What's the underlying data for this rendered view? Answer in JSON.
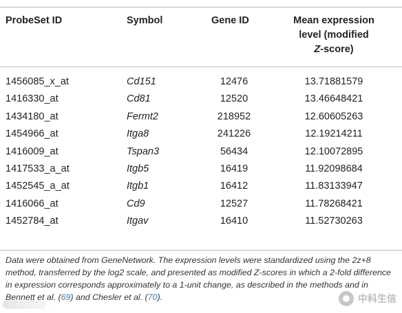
{
  "table": {
    "headers": {
      "probeset": "ProbeSet ID",
      "symbol": "Symbol",
      "gene_id": "Gene ID",
      "mean_line1": "Mean expression",
      "mean_line2": "level (modified",
      "mean_line3_z": "Z",
      "mean_line3_rest": "-score)"
    },
    "rows": [
      {
        "probeset": "1456085_x_at",
        "symbol": "Cd151",
        "gene_id": "12476",
        "mean": "13.71881579"
      },
      {
        "probeset": "1416330_at",
        "symbol": "Cd81",
        "gene_id": "12520",
        "mean": "13.46648421"
      },
      {
        "probeset": "1434180_at",
        "symbol": "Fermt2",
        "gene_id": "218952",
        "mean": "12.60605263"
      },
      {
        "probeset": "1454966_at",
        "symbol": "Itga8",
        "gene_id": "241226",
        "mean": "12.19214211"
      },
      {
        "probeset": "1416009_at",
        "symbol": "Tspan3",
        "gene_id": "56434",
        "mean": "12.10072895"
      },
      {
        "probeset": "1417533_a_at",
        "symbol": "Itgb5",
        "gene_id": "16419",
        "mean": "11.92098684"
      },
      {
        "probeset": "1452545_a_at",
        "symbol": "Itgb1",
        "gene_id": "16412",
        "mean": "11.83133947"
      },
      {
        "probeset": "1416066_at",
        "symbol": "Cd9",
        "gene_id": "12527",
        "mean": "11.78268421"
      },
      {
        "probeset": "1452784_at",
        "symbol": "Itgav",
        "gene_id": "16410",
        "mean": "11.52730263"
      }
    ]
  },
  "footnote": {
    "part1": "Data were obtained from GeneNetwork. The expression levels were standardized using the 2z+8 method, transferred by the log2 scale, and presented as modified Z-scores in which a 2-fold difference in expression corresponds approximately to a 1-unit change, as described in the methods and in Bennett et al. (",
    "ref1": "69",
    "part2": ") and Chesler et al. (",
    "ref2": "70",
    "part3": ")."
  },
  "watermark": {
    "text": "中科生信"
  }
}
